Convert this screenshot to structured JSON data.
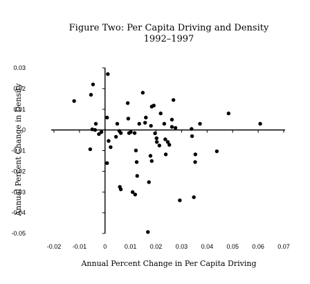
{
  "chart_data": {
    "type": "scatter",
    "title": "Figure Two: Per Capita Driving and Density",
    "subtitle": "1992–1997",
    "xlabel": "Annual Percent Change in Per Capita Driving",
    "ylabel": "Annual Percent Change in Density",
    "xlim": [
      -0.02,
      0.07
    ],
    "ylim": [
      -0.05,
      0.03
    ],
    "x_ticks": [
      "-0.02",
      "-0.01",
      "0",
      "0.01",
      "0.02",
      "0.03",
      "0.04",
      "0.05",
      "0.06",
      "0.07"
    ],
    "y_ticks": [
      "0.03",
      "0.02",
      "0.01",
      "0",
      "-0.01",
      "-0.02",
      "-0.03",
      "-0.04",
      "-0.05"
    ],
    "grid": false,
    "legend": false,
    "marker_color": "#000000",
    "points": [
      {
        "x": -0.0121,
        "y": 0.014
      },
      {
        "x": -0.0047,
        "y": 0.022
      },
      {
        "x": -0.0055,
        "y": 0.017
      },
      {
        "x": 0.0011,
        "y": 0.027
      },
      {
        "x": -0.0036,
        "y": 0.003
      },
      {
        "x": -0.005,
        "y": 0.0003
      },
      {
        "x": -0.0039,
        "y": 0.0
      },
      {
        "x": -0.0024,
        "y": -0.002
      },
      {
        "x": -0.0014,
        "y": -0.001
      },
      {
        "x": -0.0058,
        "y": -0.0093
      },
      {
        "x": 0.0008,
        "y": 0.006
      },
      {
        "x": 0.0014,
        "y": -0.0053
      },
      {
        "x": 0.0022,
        "y": -0.0083
      },
      {
        "x": 0.0008,
        "y": -0.016
      },
      {
        "x": 0.0043,
        "y": -0.0033
      },
      {
        "x": 0.0048,
        "y": 0.003
      },
      {
        "x": 0.0056,
        "y": -0.0005
      },
      {
        "x": 0.0062,
        "y": -0.0015
      },
      {
        "x": 0.0058,
        "y": -0.0275
      },
      {
        "x": 0.0062,
        "y": -0.0287
      },
      {
        "x": 0.0089,
        "y": 0.013
      },
      {
        "x": 0.0091,
        "y": 0.0055
      },
      {
        "x": 0.0094,
        "y": -0.0015
      },
      {
        "x": 0.0101,
        "y": -0.001
      },
      {
        "x": 0.0116,
        "y": -0.0015
      },
      {
        "x": 0.0121,
        "y": -0.0099
      },
      {
        "x": 0.0124,
        "y": -0.0155
      },
      {
        "x": 0.0126,
        "y": -0.0222
      },
      {
        "x": 0.0108,
        "y": -0.03
      },
      {
        "x": 0.0118,
        "y": -0.0312
      },
      {
        "x": 0.0134,
        "y": 0.003
      },
      {
        "x": 0.0148,
        "y": 0.018
      },
      {
        "x": 0.016,
        "y": 0.006
      },
      {
        "x": 0.0157,
        "y": 0.0035
      },
      {
        "x": 0.0183,
        "y": 0.0113
      },
      {
        "x": 0.0191,
        "y": 0.0118
      },
      {
        "x": 0.018,
        "y": 0.002
      },
      {
        "x": 0.0196,
        "y": -0.0016
      },
      {
        "x": 0.0202,
        "y": -0.004
      },
      {
        "x": 0.0203,
        "y": -0.0058
      },
      {
        "x": 0.0213,
        "y": -0.0075
      },
      {
        "x": 0.0178,
        "y": -0.0125
      },
      {
        "x": 0.0183,
        "y": -0.015
      },
      {
        "x": 0.0172,
        "y": -0.0252
      },
      {
        "x": 0.0168,
        "y": -0.0493
      },
      {
        "x": 0.0218,
        "y": 0.008
      },
      {
        "x": 0.0232,
        "y": 0.003
      },
      {
        "x": 0.0236,
        "y": -0.0045
      },
      {
        "x": 0.0246,
        "y": -0.0058
      },
      {
        "x": 0.0238,
        "y": -0.0118
      },
      {
        "x": 0.0252,
        "y": -0.0072
      },
      {
        "x": 0.0262,
        "y": 0.005
      },
      {
        "x": 0.0268,
        "y": 0.0145
      },
      {
        "x": 0.0262,
        "y": 0.0015
      },
      {
        "x": 0.0276,
        "y": 0.001
      },
      {
        "x": 0.0293,
        "y": -0.034
      },
      {
        "x": 0.0339,
        "y": 0.0005
      },
      {
        "x": 0.0341,
        "y": -0.003
      },
      {
        "x": 0.0354,
        "y": -0.0118
      },
      {
        "x": 0.0353,
        "y": -0.0155
      },
      {
        "x": 0.0372,
        "y": 0.003
      },
      {
        "x": 0.0348,
        "y": -0.0325
      },
      {
        "x": 0.0438,
        "y": -0.0103
      },
      {
        "x": 0.0484,
        "y": 0.008
      },
      {
        "x": 0.0608,
        "y": 0.003
      }
    ]
  }
}
